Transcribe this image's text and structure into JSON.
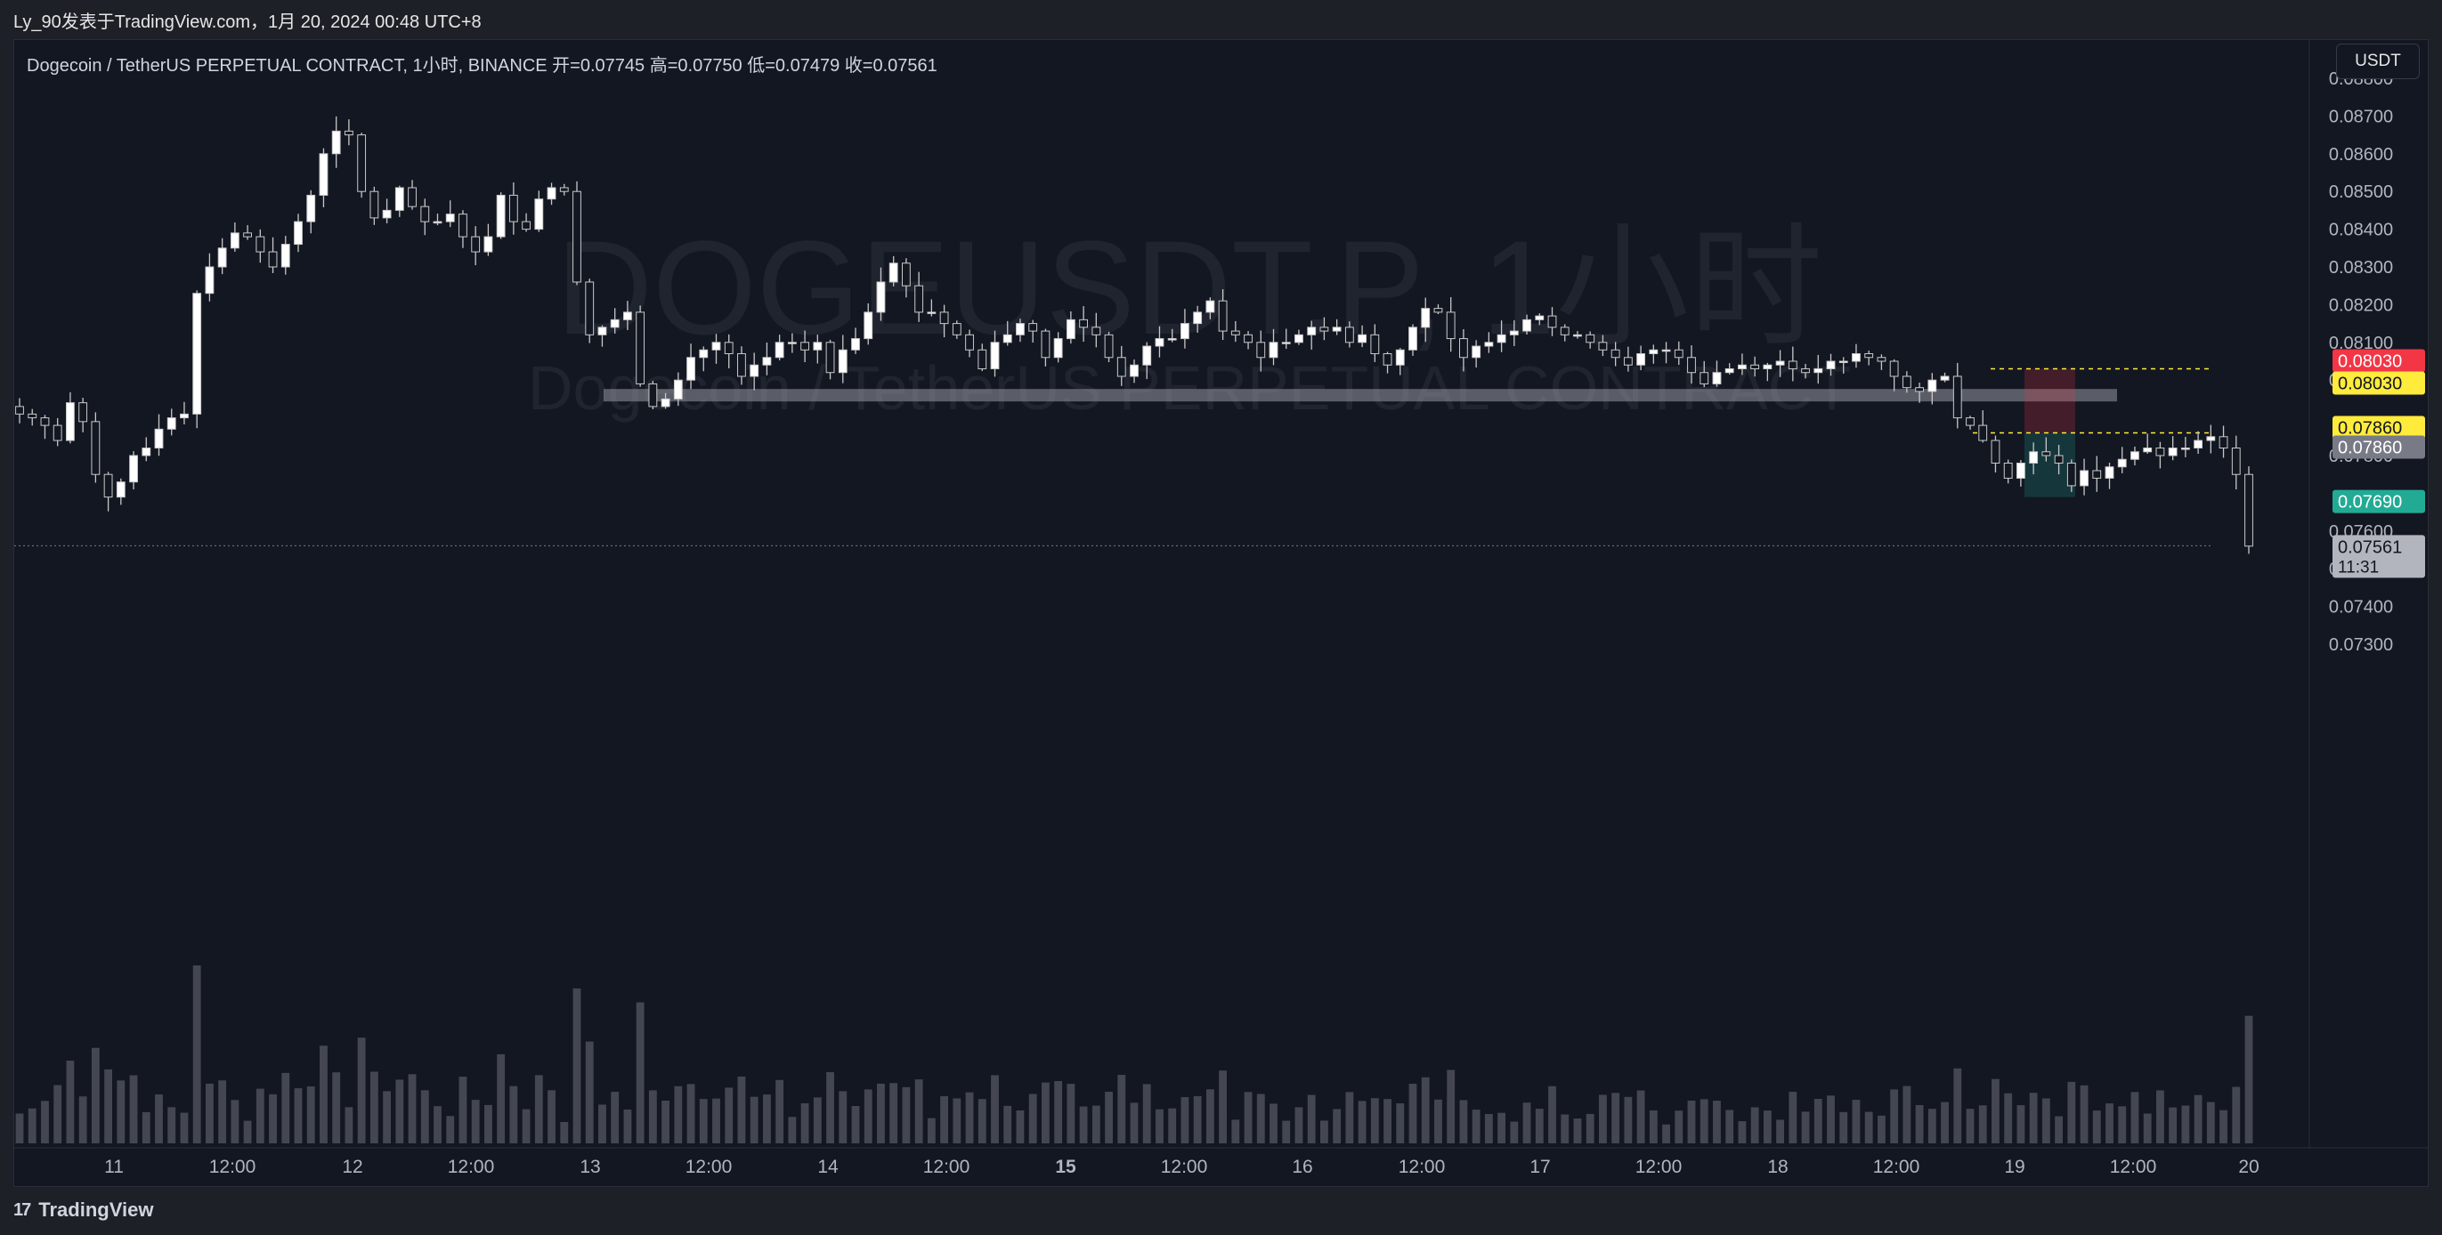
{
  "header": {
    "publisher": "Ly_90发表于TradingView.com，1月 20, 2024 00:48 UTC+8"
  },
  "legend": {
    "text": "Dogecoin / TetherUS PERPETUAL CONTRACT, 1小时, BINANCE  开=0.07745  高=0.07750  低=0.07479  收=0.07561"
  },
  "currency_button": "USDT",
  "watermark": {
    "symbol": "DOGEUSDT.P, 1小时",
    "name": "Dogecoin / TetherUS PERPETUAL CONTRACT"
  },
  "footer": {
    "brand": "TradingView",
    "logo": "17"
  },
  "colors": {
    "background": "#131722",
    "candle_up": "#ffffff",
    "candle_down": "#131722",
    "wick": "#c8c8c8",
    "stop_label": "#f23645",
    "entry_label": "#ffeb3b",
    "target_label": "#22ab94",
    "last_price_label": "#b2b5be",
    "volume": "#4a4d57"
  },
  "chart_data": {
    "type": "candlestick",
    "symbol": "DOGEUSDT.P",
    "timeframe": "1小时",
    "exchange": "BINANCE",
    "ohlc_last": {
      "open": 0.07745,
      "high": 0.0775,
      "low": 0.07479,
      "close": 0.07561
    },
    "y_axis": {
      "ticks": [
        "0.08800",
        "0.08700",
        "0.08600",
        "0.08500",
        "0.08400",
        "0.08300",
        "0.08200",
        "0.08100",
        "0.08000",
        "0.07800",
        "0.07600",
        "0.07500",
        "0.07400",
        "0.07300"
      ],
      "range": [
        0.0726,
        0.0889
      ]
    },
    "x_axis": {
      "ticks": [
        "11",
        "12:00",
        "12",
        "12:00",
        "13",
        "12:00",
        "14",
        "12:00",
        "15",
        "12:00",
        "16",
        "12:00",
        "17",
        "12:00",
        "18",
        "12:00",
        "19",
        "12:00",
        "20"
      ]
    },
    "price_labels": [
      {
        "text": "0.08030",
        "kind": "stop"
      },
      {
        "text": "0.08030",
        "kind": "entry"
      },
      {
        "text": "0.07860",
        "kind": "entry"
      },
      {
        "text": "0.07860",
        "kind": "neutral"
      },
      {
        "text": "0.07690",
        "kind": "target"
      },
      {
        "text": "0.07561",
        "kind": "last"
      }
    ],
    "countdown": "11:31",
    "support_zone": [
      0.0794,
      0.0796
    ],
    "position": {
      "entry": 0.0786,
      "stop": 0.0803,
      "target": 0.0769
    },
    "candles_close": [
      0.0791,
      0.079,
      0.0788,
      0.0784,
      0.0794,
      0.0789,
      0.0775,
      0.0769,
      0.0773,
      0.078,
      0.0782,
      0.0787,
      0.079,
      0.0791,
      0.0823,
      0.083,
      0.0835,
      0.0839,
      0.0838,
      0.0834,
      0.083,
      0.0836,
      0.0842,
      0.0849,
      0.086,
      0.0866,
      0.0865,
      0.085,
      0.0843,
      0.0845,
      0.0851,
      0.0846,
      0.0842,
      0.0842,
      0.0844,
      0.0838,
      0.0834,
      0.0838,
      0.0849,
      0.0842,
      0.084,
      0.0848,
      0.0851,
      0.085,
      0.0826,
      0.0812,
      0.0814,
      0.0816,
      0.0818,
      0.0799,
      0.0793,
      0.0795,
      0.08,
      0.0806,
      0.0808,
      0.081,
      0.0807,
      0.0801,
      0.0804,
      0.0806,
      0.081,
      0.081,
      0.0808,
      0.081,
      0.0802,
      0.0808,
      0.0811,
      0.0818,
      0.0826,
      0.0831,
      0.0825,
      0.0818,
      0.0818,
      0.0815,
      0.0812,
      0.0808,
      0.0803,
      0.081,
      0.0812,
      0.0815,
      0.0813,
      0.0806,
      0.0811,
      0.0816,
      0.0814,
      0.0812,
      0.0806,
      0.0801,
      0.0804,
      0.0809,
      0.0811,
      0.0811,
      0.0815,
      0.0818,
      0.0821,
      0.0813,
      0.0812,
      0.081,
      0.0806,
      0.081,
      0.081,
      0.0812,
      0.0814,
      0.0813,
      0.0814,
      0.081,
      0.0812,
      0.0807,
      0.0804,
      0.0808,
      0.0814,
      0.0819,
      0.0818,
      0.0811,
      0.0806,
      0.0809,
      0.081,
      0.0812,
      0.0813,
      0.0816,
      0.0817,
      0.0814,
      0.0812,
      0.0812,
      0.081,
      0.0808,
      0.0806,
      0.0804,
      0.0807,
      0.0808,
      0.0808,
      0.0806,
      0.0802,
      0.0799,
      0.0802,
      0.0803,
      0.0804,
      0.0803,
      0.0804,
      0.0805,
      0.0803,
      0.0802,
      0.0803,
      0.0805,
      0.0805,
      0.0807,
      0.0806,
      0.0805,
      0.0801,
      0.0798,
      0.0797,
      0.08,
      0.0801,
      0.079,
      0.0788,
      0.0784,
      0.0778,
      0.0774,
      0.0778,
      0.0781,
      0.078,
      0.0778,
      0.0772,
      0.0776,
      0.0774,
      0.0777,
      0.0779,
      0.0781,
      0.0782,
      0.078,
      0.0782,
      0.0782,
      0.0784,
      0.0785,
      0.0782,
      0.0775,
      0.0756
    ],
    "volume_axis_note": "volume histogram at bottom"
  }
}
